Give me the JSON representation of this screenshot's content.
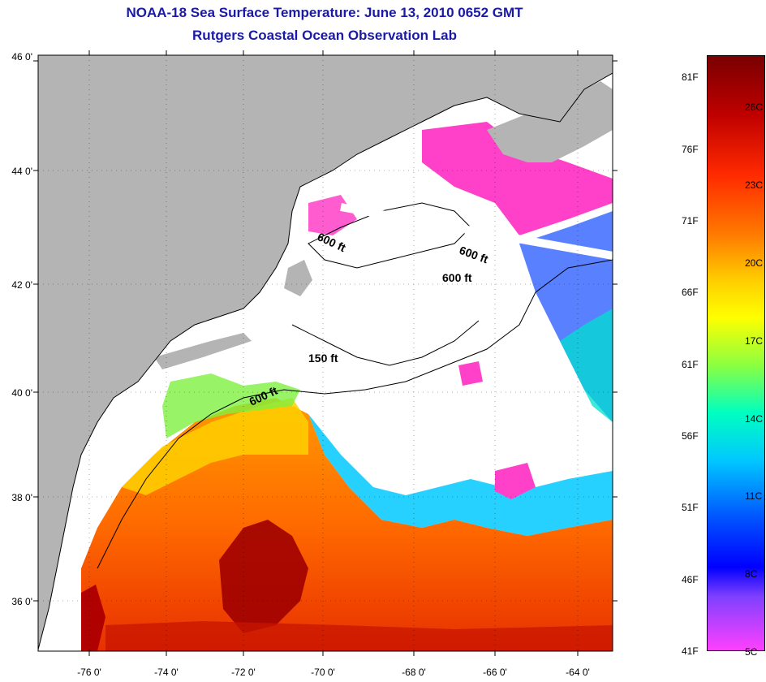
{
  "title": {
    "line1": "NOAA-18 Sea Surface Temperature:  June 13, 2010 0652 GMT",
    "line2": "Rutgers Coastal Ocean Observation Lab"
  },
  "map": {
    "lat_ticks": [
      "46 0'",
      "44 0'",
      "42 0'",
      "40 0'",
      "38 0'",
      "36 0'"
    ],
    "lon_ticks": [
      "-76 0'",
      "-74 0'",
      "-72 0'",
      "-70 0'",
      "-68 0'",
      "-66 0'",
      "-64 0'"
    ],
    "contour_labels": [
      "600 ft",
      "600 ft",
      "600 ft",
      "150 ft",
      "600 ft"
    ],
    "colors": {
      "land": "#b4b4b4",
      "cloud": "#ffffff",
      "warm": "#ff8a00",
      "hot": "#a00000",
      "cool": "#00d0ff",
      "cold": "#ff40c8"
    }
  },
  "colorbar": {
    "fahrenheit": [
      "81F",
      "76F",
      "71F",
      "66F",
      "61F",
      "56F",
      "51F",
      "46F",
      "41F"
    ],
    "celsius": [
      "26C",
      "23C",
      "20C",
      "17C",
      "14C",
      "11C",
      "8C",
      "5C"
    ]
  }
}
